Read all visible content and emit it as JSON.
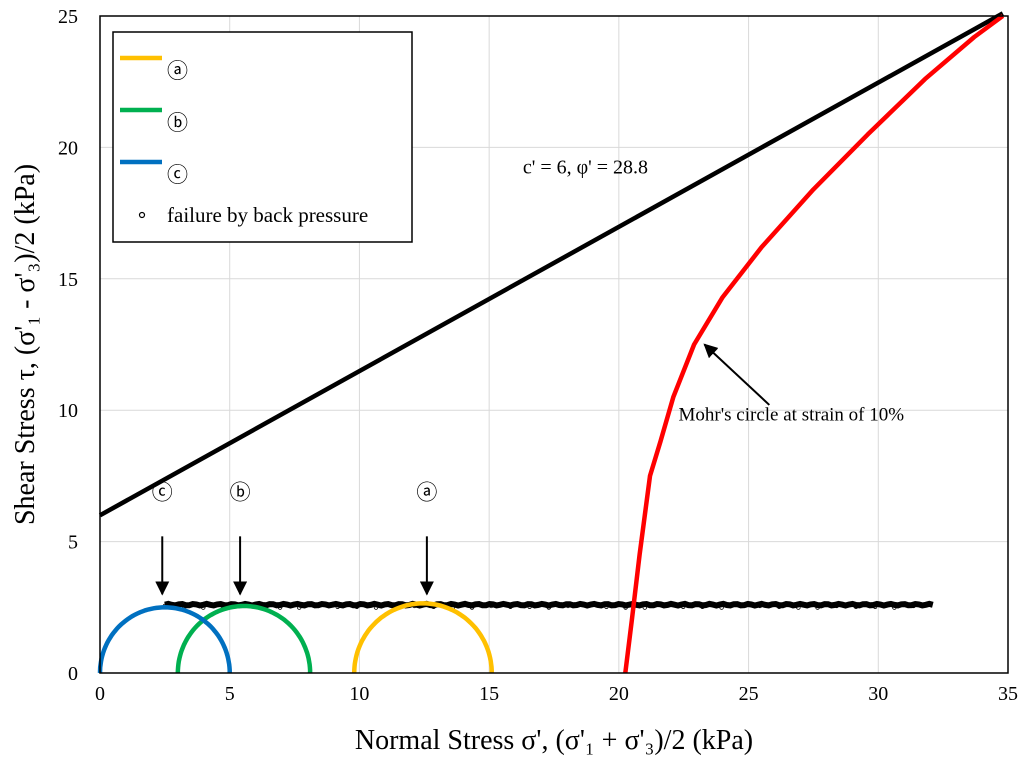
{
  "chart_data": {
    "type": "line",
    "xlabel": "Normal Stress σ', (σ'₁ + σ'₃)/2 (kPa)",
    "ylabel": "Shear Stress τ, (σ'₁ - σ'₃)/2 (kPa)",
    "xlim": [
      0,
      35
    ],
    "ylim": [
      0,
      25
    ],
    "x_ticks": [
      "0",
      "5",
      "10",
      "15",
      "20",
      "25",
      "30",
      "35"
    ],
    "y_ticks": [
      "0",
      "5",
      "10",
      "15",
      "20",
      "25"
    ],
    "grid": true,
    "legend_position": "top-left",
    "legend": [
      {
        "label": "ⓐ",
        "color": "#FFC000",
        "marker": "line"
      },
      {
        "label": "ⓑ",
        "color": "#00B050",
        "marker": "line"
      },
      {
        "label": "ⓒ",
        "color": "#0070C0",
        "marker": "line"
      },
      {
        "label": "failure by back pressure",
        "color": "#000000",
        "marker": "circle"
      }
    ],
    "failure_envelope": {
      "label": "c' = 6, φ' = 28.8",
      "cohesion": 6,
      "friction_angle_deg": 28.8,
      "color": "#000000",
      "points": [
        [
          0,
          6
        ],
        [
          34.8,
          25.1
        ]
      ]
    },
    "mohr_circles": [
      {
        "name": "ⓐ",
        "center": 12.45,
        "radius": 2.65,
        "color": "#FFC000"
      },
      {
        "name": "ⓑ",
        "center": 5.55,
        "radius": 2.55,
        "color": "#00B050"
      },
      {
        "name": "ⓒ",
        "center": 2.5,
        "radius": 2.5,
        "color": "#0070C0"
      }
    ],
    "mohr_circle_10pct": {
      "color": "#FF0000",
      "points": [
        [
          20.25,
          0
        ],
        [
          20.5,
          2
        ],
        [
          20.8,
          4.5
        ],
        [
          21.2,
          7.5
        ],
        [
          21.6,
          8.8
        ],
        [
          22.1,
          10.5
        ],
        [
          22.9,
          12.5
        ],
        [
          24.0,
          14.3
        ],
        [
          25.5,
          16.2
        ],
        [
          27.5,
          18.4
        ],
        [
          29.6,
          20.5
        ],
        [
          31.8,
          22.6
        ],
        [
          33.7,
          24.2
        ],
        [
          34.8,
          25.0
        ]
      ]
    },
    "failure_by_back_pressure": {
      "x_range": [
        2.5,
        32.1
      ],
      "y": 2.6,
      "color": "#000000"
    },
    "annotations": [
      {
        "text": "Mohr's circle at strain of 10%",
        "x": 22.3,
        "y": 9.6,
        "arrow_from": [
          25.8,
          10.2
        ],
        "arrow_to": [
          23.3,
          12.5
        ]
      },
      {
        "text": "ⓒ",
        "x": 2.4,
        "y": 6.6,
        "arrow_from": [
          2.4,
          5.2
        ],
        "arrow_to": [
          2.4,
          3.0
        ]
      },
      {
        "text": "ⓑ",
        "x": 5.4,
        "y": 6.6,
        "arrow_from": [
          5.4,
          5.2
        ],
        "arrow_to": [
          5.4,
          3.0
        ]
      },
      {
        "text": "ⓐ",
        "x": 12.6,
        "y": 6.6,
        "arrow_from": [
          12.6,
          5.2
        ],
        "arrow_to": [
          12.6,
          3.0
        ]
      }
    ]
  }
}
